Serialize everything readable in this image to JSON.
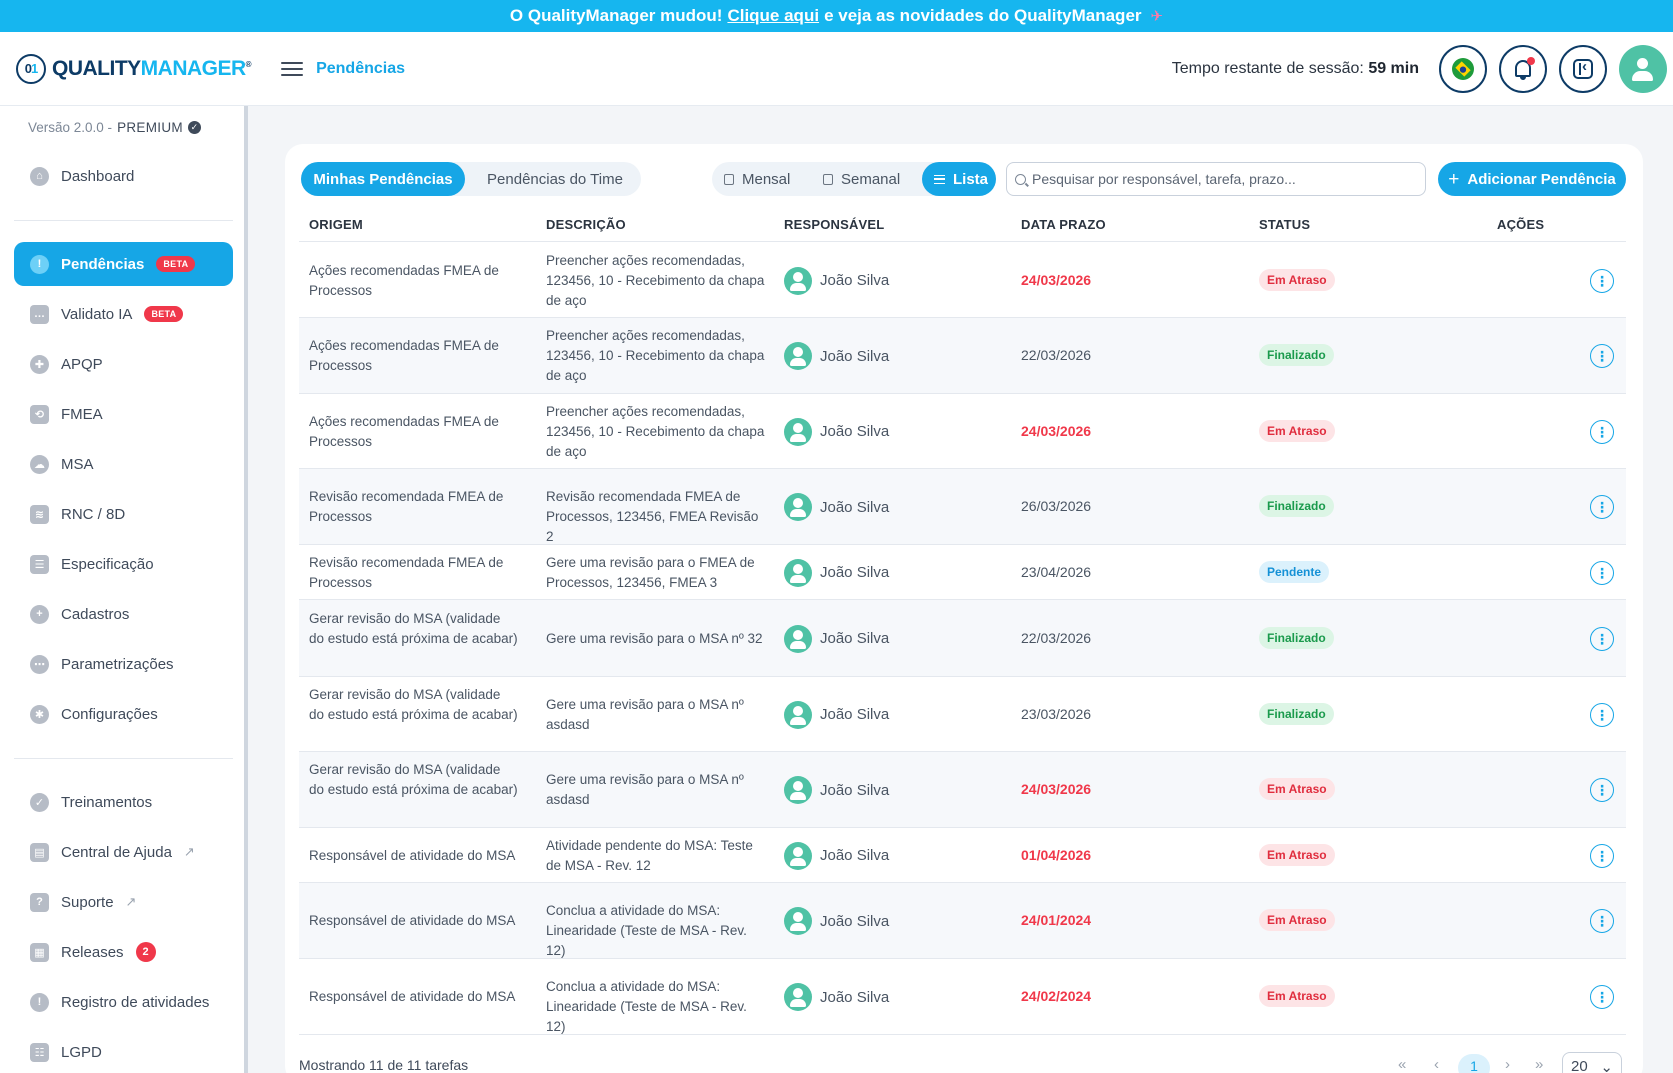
{
  "banner": {
    "text_before": "O QualityManager mudou!",
    "link": "Clique aqui",
    "text_after": "e veja as novidades do QualityManager",
    "icon": "rocket-icon"
  },
  "header": {
    "logo_text_1": "QUALITY",
    "logo_text_2": "MANAGER",
    "logo_mark": "01",
    "logo_reg": "®",
    "page_title": "Pendências",
    "session_label": "Tempo restante de sessão:",
    "session_value": "59 min"
  },
  "sidebar": {
    "version": "Versão 2.0.0 -",
    "plan": "PREMIUM",
    "items": [
      {
        "label": "Dashboard",
        "icon": "home-icon"
      },
      {
        "label": "Pendências",
        "icon": "alert-icon",
        "badge": "BETA",
        "active": true
      },
      {
        "label": "Validato IA",
        "icon": "chat-icon",
        "badge": "BETA"
      },
      {
        "label": "APQP",
        "icon": "apqp-icon"
      },
      {
        "label": "FMEA",
        "icon": "fmea-icon"
      },
      {
        "label": "MSA",
        "icon": "msa-icon"
      },
      {
        "label": "RNC / 8D",
        "icon": "layers-icon"
      },
      {
        "label": "Especificação",
        "icon": "list-icon"
      },
      {
        "label": "Cadastros",
        "icon": "plus-circle-icon"
      },
      {
        "label": "Parametrizações",
        "icon": "sliders-icon"
      },
      {
        "label": "Configurações",
        "icon": "gear-icon"
      },
      {
        "label": "Treinamentos",
        "icon": "check-circle-icon"
      },
      {
        "label": "Central de Ajuda",
        "icon": "book-icon",
        "external": true
      },
      {
        "label": "Suporte",
        "icon": "help-icon",
        "external": true
      },
      {
        "label": "Releases",
        "icon": "grid-icon",
        "count": "2"
      },
      {
        "label": "Registro de atividades",
        "icon": "info-icon"
      },
      {
        "label": "LGPD",
        "icon": "checklist-icon"
      }
    ]
  },
  "toolbar": {
    "tab_mine": "Minhas Pendências",
    "tab_team": "Pendências do Time",
    "view_monthly": "Mensal",
    "view_weekly": "Semanal",
    "view_list": "Lista",
    "search_placeholder": "Pesquisar por responsável, tarefa, prazo...",
    "add_button": "Adicionar Pendência"
  },
  "table": {
    "headers": [
      "ORIGEM",
      "DESCRIÇÃO",
      "RESPONSÁVEL",
      "DATA PRAZO",
      "STATUS",
      "AÇÕES"
    ],
    "rows": [
      {
        "origem": "Ações recomendadas FMEA de Processos",
        "descricao": "Preencher ações recomendadas, 123456, 10 - Recebimento da chapa de aço",
        "responsavel": "João Silva",
        "prazo": "24/03/2026",
        "late": true,
        "status": "Em Atraso",
        "kind": "late"
      },
      {
        "origem": "Ações recomendadas FMEA de Processos",
        "descricao": "Preencher ações recomendadas, 123456, 10 - Recebimento da chapa de aço",
        "responsavel": "João Silva",
        "prazo": "22/03/2026",
        "late": false,
        "status": "Finalizado",
        "kind": "done"
      },
      {
        "origem": "Ações recomendadas FMEA de Processos",
        "descricao": "Preencher ações recomendadas, 123456, 10 - Recebimento da chapa de aço",
        "responsavel": "João Silva",
        "prazo": "24/03/2026",
        "late": true,
        "status": "Em Atraso",
        "kind": "late"
      },
      {
        "origem": "Revisão recomendada FMEA de Processos",
        "descricao": "Revisão recomendada FMEA de Processos, 123456, FMEA Revisão 2",
        "responsavel": "João Silva",
        "prazo": "26/03/2026",
        "late": false,
        "status": "Finalizado",
        "kind": "done"
      },
      {
        "origem": "Revisão recomendada FMEA de Processos",
        "descricao": "Gere uma revisão para o FMEA de Processos, 123456, FMEA 3",
        "responsavel": "João Silva",
        "prazo": "23/04/2026",
        "late": false,
        "status": "Pendente",
        "kind": "pend"
      },
      {
        "origem": "Gerar revisão do MSA (validade do estudo está próxima de acabar)",
        "descricao": "Gere uma revisão para o MSA nº 32",
        "responsavel": "João Silva",
        "prazo": "22/03/2026",
        "late": false,
        "status": "Finalizado",
        "kind": "done"
      },
      {
        "origem": "Gerar revisão do MSA (validade do estudo está próxima de acabar)",
        "descricao": "Gere uma revisão para o MSA nº asdasd",
        "responsavel": "João Silva",
        "prazo": "23/03/2026",
        "late": false,
        "status": "Finalizado",
        "kind": "done"
      },
      {
        "origem": "Gerar revisão do MSA (validade do estudo está próxima de acabar)",
        "descricao": "Gere uma revisão para o MSA nº asdasd",
        "responsavel": "João Silva",
        "prazo": "24/03/2026",
        "late": true,
        "status": "Em Atraso",
        "kind": "late"
      },
      {
        "origem": "Responsável de atividade do MSA",
        "descricao": "Atividade pendente do MSA: Teste de MSA - Rev. 12",
        "responsavel": "João Silva",
        "prazo": "01/04/2026",
        "late": true,
        "status": "Em Atraso",
        "kind": "late"
      },
      {
        "origem": "Responsável de atividade do MSA",
        "descricao": "Conclua a atividade do MSA: Linearidade (Teste de MSA - Rev. 12)",
        "responsavel": "João Silva",
        "prazo": "24/01/2024",
        "late": true,
        "status": "Em Atraso",
        "kind": "late"
      },
      {
        "origem": "Responsável de atividade do MSA",
        "descricao": "Conclua a atividade do MSA: Linearidade (Teste de MSA - Rev. 12)",
        "responsavel": "João Silva",
        "prazo": "24/02/2024",
        "late": true,
        "status": "Em Atraso",
        "kind": "late"
      }
    ]
  },
  "footer": {
    "showing": "Mostrando 11 de 11 tarefas",
    "first": "«",
    "prev": "‹",
    "current_page": "1",
    "next": "›",
    "last": "»",
    "per_page": "20"
  },
  "colors": {
    "accent": "#16a6e6",
    "banner": "#16b6ef",
    "late": "#f0384a",
    "done": "#1a9a4c",
    "avatar": "#4fc2a5"
  }
}
